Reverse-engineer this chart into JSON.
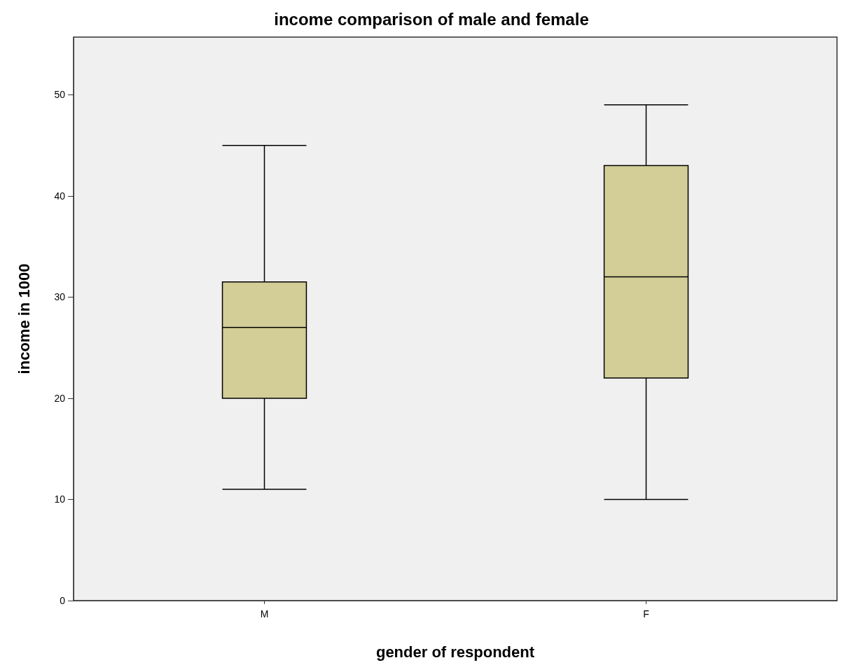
{
  "chart_data": {
    "type": "box",
    "title": "income comparison of male and female",
    "xlabel": "gender of respondent",
    "ylabel": "income in 1000",
    "categories": [
      "M",
      "F"
    ],
    "color": "#d3ce97",
    "boxes": [
      {
        "low": 11,
        "q1": 20,
        "median": 27,
        "q3": 31.5,
        "high": 45
      },
      {
        "low": 10,
        "q1": 22,
        "median": 32,
        "q3": 43,
        "high": 49
      }
    ],
    "ylim": [
      0,
      55.7
    ],
    "yticks": [
      0,
      10,
      20,
      30,
      40,
      50
    ],
    "grid": false
  }
}
